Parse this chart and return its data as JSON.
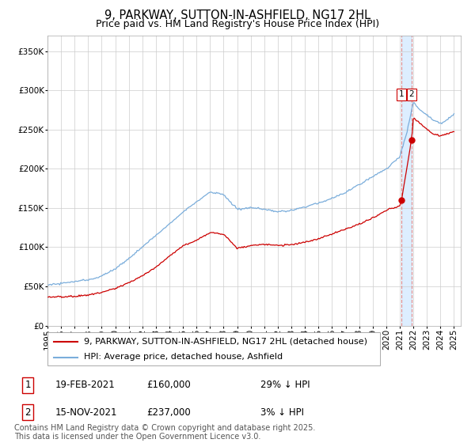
{
  "title": "9, PARKWAY, SUTTON-IN-ASHFIELD, NG17 2HL",
  "subtitle": "Price paid vs. HM Land Registry's House Price Index (HPI)",
  "ylim": [
    0,
    370000
  ],
  "xlim_start": 1995.0,
  "xlim_end": 2025.5,
  "yticks": [
    0,
    50000,
    100000,
    150000,
    200000,
    250000,
    300000,
    350000
  ],
  "ytick_labels": [
    "£0",
    "£50K",
    "£100K",
    "£150K",
    "£200K",
    "£250K",
    "£300K",
    "£350K"
  ],
  "xticks": [
    1995,
    1996,
    1997,
    1998,
    1999,
    2000,
    2001,
    2002,
    2003,
    2004,
    2005,
    2006,
    2007,
    2008,
    2009,
    2010,
    2011,
    2012,
    2013,
    2014,
    2015,
    2016,
    2017,
    2018,
    2019,
    2020,
    2021,
    2022,
    2023,
    2024,
    2025
  ],
  "sale1_x": 2021.12,
  "sale1_y": 160000,
  "sale2_x": 2021.87,
  "sale2_y": 237000,
  "vline_x1": 2021.12,
  "vline_x2": 2021.87,
  "legend_line1": "9, PARKWAY, SUTTON-IN-ASHFIELD, NG17 2HL (detached house)",
  "legend_line2": "HPI: Average price, detached house, Ashfield",
  "table_row1": [
    "1",
    "19-FEB-2021",
    "£160,000",
    "29% ↓ HPI"
  ],
  "table_row2": [
    "2",
    "15-NOV-2021",
    "£237,000",
    "3% ↓ HPI"
  ],
  "footer": "Contains HM Land Registry data © Crown copyright and database right 2025.\nThis data is licensed under the Open Government Licence v3.0.",
  "line_color_red": "#cc0000",
  "line_color_blue": "#7aaddb",
  "vline_color": "#dd8888",
  "span_color": "#ddeeff",
  "dot_color": "#cc0000",
  "background_color": "#ffffff",
  "grid_color": "#cccccc",
  "title_fontsize": 10.5,
  "subtitle_fontsize": 9,
  "tick_fontsize": 7.5,
  "legend_fontsize": 8,
  "table_fontsize": 8,
  "footer_fontsize": 7
}
